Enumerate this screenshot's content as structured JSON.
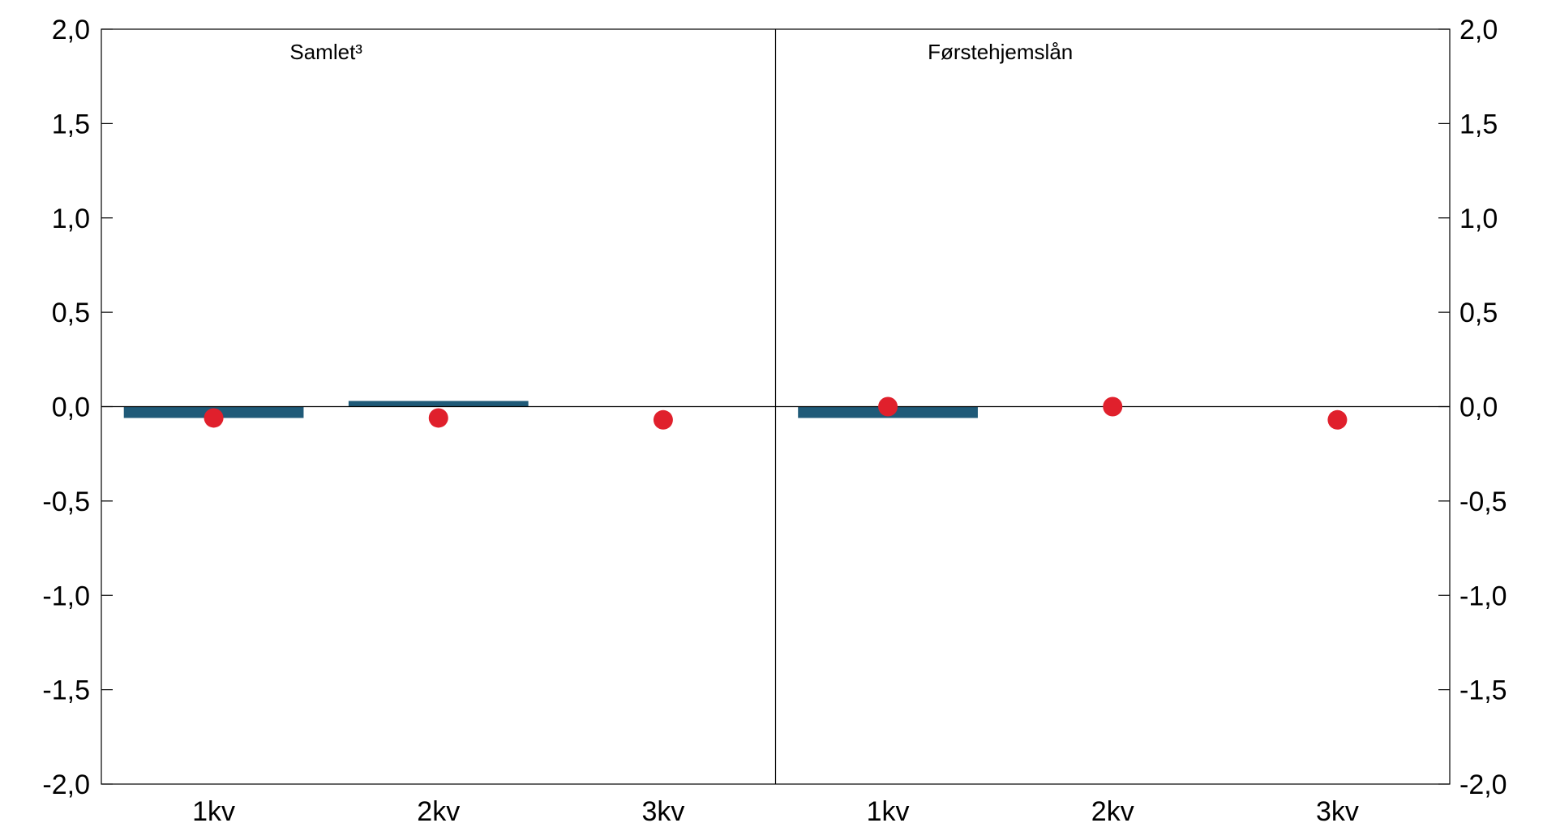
{
  "chart_data": {
    "type": "bar",
    "grid": false,
    "legend": "none",
    "ylim": [
      -2.0,
      2.0
    ],
    "yticks": [
      2.0,
      1.5,
      1.0,
      0.5,
      0.0,
      -0.5,
      -1.0,
      -1.5,
      -2.0
    ],
    "ytick_labels": [
      "2,0",
      "1,5",
      "1,0",
      "0,5",
      "0,0",
      "-0,5",
      "-1,0",
      "-1,5",
      "-2,0"
    ],
    "colors": {
      "bars": "#1f5a78",
      "points": "#e0202c",
      "axis": "#000000"
    },
    "panels": [
      {
        "title": "Samlet³",
        "categories": [
          "1kv",
          "2kv",
          "3kv"
        ],
        "bars": [
          -0.06,
          0.03,
          null
        ],
        "points": [
          -0.06,
          -0.06,
          -0.07
        ]
      },
      {
        "title": "Førstehjemslån",
        "categories": [
          "1kv",
          "2kv",
          "3kv"
        ],
        "bars": [
          -0.06,
          null,
          null
        ],
        "points": [
          0.0,
          0.0,
          -0.07
        ]
      }
    ]
  }
}
